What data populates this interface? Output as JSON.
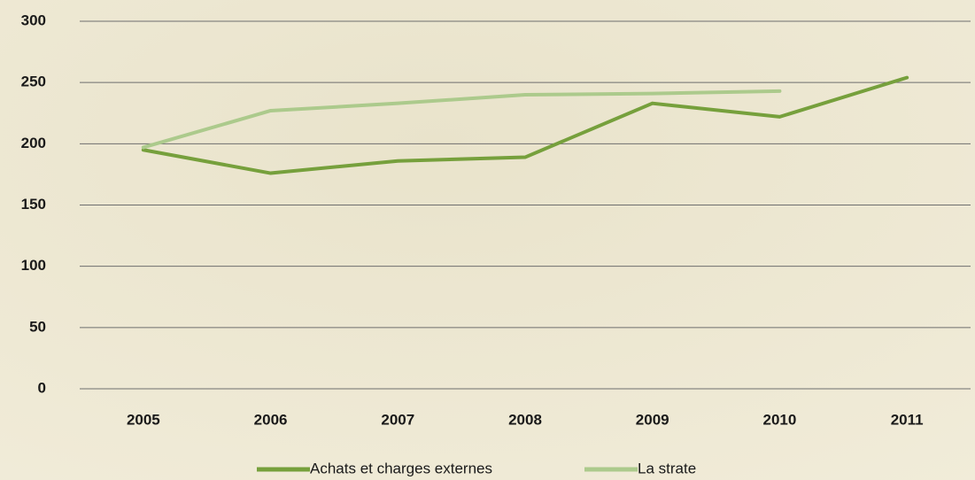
{
  "chart_data": {
    "type": "line",
    "categories": [
      "2005",
      "2006",
      "2007",
      "2008",
      "2009",
      "2010",
      "2011"
    ],
    "series": [
      {
        "name": "Achats et charges externes",
        "color": "#76a03c",
        "values": [
          195,
          176,
          186,
          189,
          233,
          222,
          254
        ]
      },
      {
        "name": "La strate",
        "color": "#acca8c",
        "values": [
          197,
          227,
          233,
          240,
          241,
          243,
          null
        ]
      }
    ],
    "ylim": [
      0,
      300
    ],
    "yticks": [
      0,
      50,
      100,
      150,
      200,
      250,
      300
    ],
    "grid": true,
    "legend": "bottom"
  }
}
